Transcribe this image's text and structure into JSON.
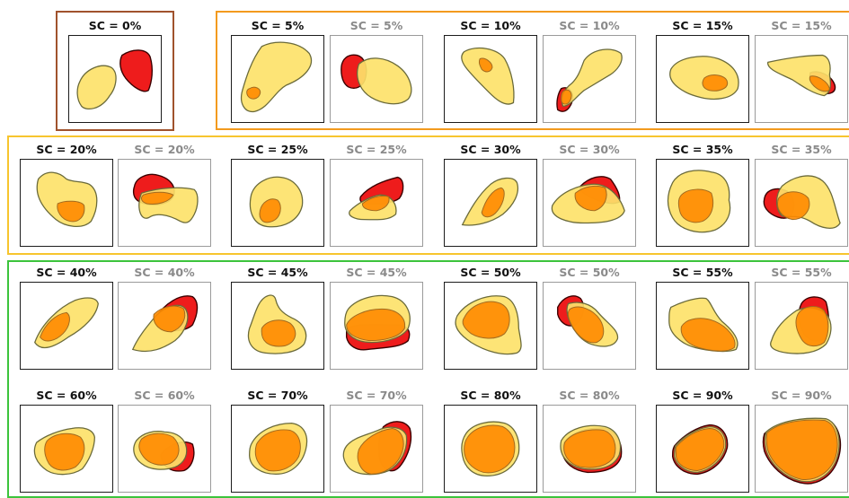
{
  "colors": {
    "group_0": "#a0522d",
    "group_low": "#f39a1e",
    "group_mid": "#f7c52e",
    "group_high": "#3cc43c",
    "shape_yellow": "#fde26a",
    "shape_orange": "#ff8a00",
    "shape_red": "#ee1c1c"
  },
  "labels": {
    "sc0": "SC = 0%",
    "sc5": "SC = 5%",
    "sc5b": "SC = 5%",
    "sc10": "SC = 10%",
    "sc10b": "SC = 10%",
    "sc15": "SC = 15%",
    "sc15b": "SC = 15%",
    "sc20": "SC = 20%",
    "sc20b": "SC = 20%",
    "sc25": "SC = 25%",
    "sc25b": "SC = 25%",
    "sc30": "SC = 30%",
    "sc30b": "SC = 30%",
    "sc35": "SC = 35%",
    "sc35b": "SC = 35%",
    "sc40": "SC = 40%",
    "sc40b": "SC = 40%",
    "sc45": "SC = 45%",
    "sc45b": "SC = 45%",
    "sc50": "SC = 50%",
    "sc50b": "SC = 50%",
    "sc55": "SC = 55%",
    "sc55b": "SC = 55%",
    "sc60": "SC = 60%",
    "sc60b": "SC = 60%",
    "sc70": "SC = 70%",
    "sc70b": "SC = 70%",
    "sc80": "SC = 80%",
    "sc80b": "SC = 80%",
    "sc90": "SC = 90%",
    "sc90b": "SC = 90%"
  }
}
